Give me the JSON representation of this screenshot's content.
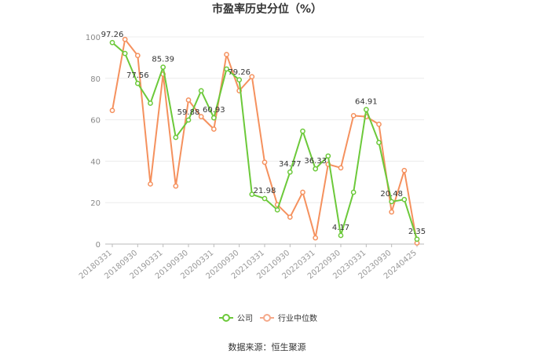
{
  "chart_data": {
    "type": "line",
    "title": "市盈率历史分位（%）",
    "ylim": [
      0,
      100
    ],
    "y_ticks": [
      0,
      20,
      40,
      60,
      80,
      100
    ],
    "x_tick_labels": [
      "20180331",
      "20180930",
      "20190331",
      "20190930",
      "20200331",
      "20200930",
      "20210331",
      "20210930",
      "20220331",
      "20220930",
      "20230331",
      "20230930",
      "20240425"
    ],
    "grid": true,
    "legend_position": "bottom-center",
    "series": [
      {
        "name": "公司",
        "color": "#6cc93a",
        "values": [
          97.26,
          92.0,
          77.56,
          68.0,
          85.39,
          51.5,
          59.88,
          74.0,
          60.93,
          84.5,
          79.26,
          24.0,
          21.98,
          16.5,
          34.77,
          54.5,
          36.33,
          42.5,
          4.17,
          25.0,
          64.91,
          49.0,
          20.48,
          21.5,
          2.35
        ]
      },
      {
        "name": "行业中位数",
        "color": "#f5915e",
        "values": [
          64.5,
          98.8,
          91.0,
          29.0,
          82.0,
          28.0,
          69.5,
          61.5,
          55.5,
          91.5,
          74.0,
          80.8,
          39.5,
          19.0,
          13.0,
          25.0,
          3.0,
          38.5,
          36.8,
          62.0,
          61.5,
          57.8,
          15.5,
          35.5,
          0.5
        ]
      }
    ],
    "data_labels": [
      {
        "index": 0,
        "text": "97.26"
      },
      {
        "index": 2,
        "text": "77.56"
      },
      {
        "index": 4,
        "text": "85.39"
      },
      {
        "index": 6,
        "text": "59.88"
      },
      {
        "index": 8,
        "text": "60.93"
      },
      {
        "index": 10,
        "text": "79.26"
      },
      {
        "index": 12,
        "text": "21.98"
      },
      {
        "index": 14,
        "text": "34.77"
      },
      {
        "index": 16,
        "text": "36.33"
      },
      {
        "index": 18,
        "text": "4.17"
      },
      {
        "index": 20,
        "text": "64.91"
      },
      {
        "index": 22,
        "text": "20.48"
      },
      {
        "index": 24,
        "text": "2.35"
      }
    ]
  },
  "legend": [
    {
      "label": "公司",
      "color": "#6cc93a"
    },
    {
      "label": "行业中位数",
      "color": "#f5a98a"
    }
  ],
  "source_text": "数据来源：恒生聚源"
}
